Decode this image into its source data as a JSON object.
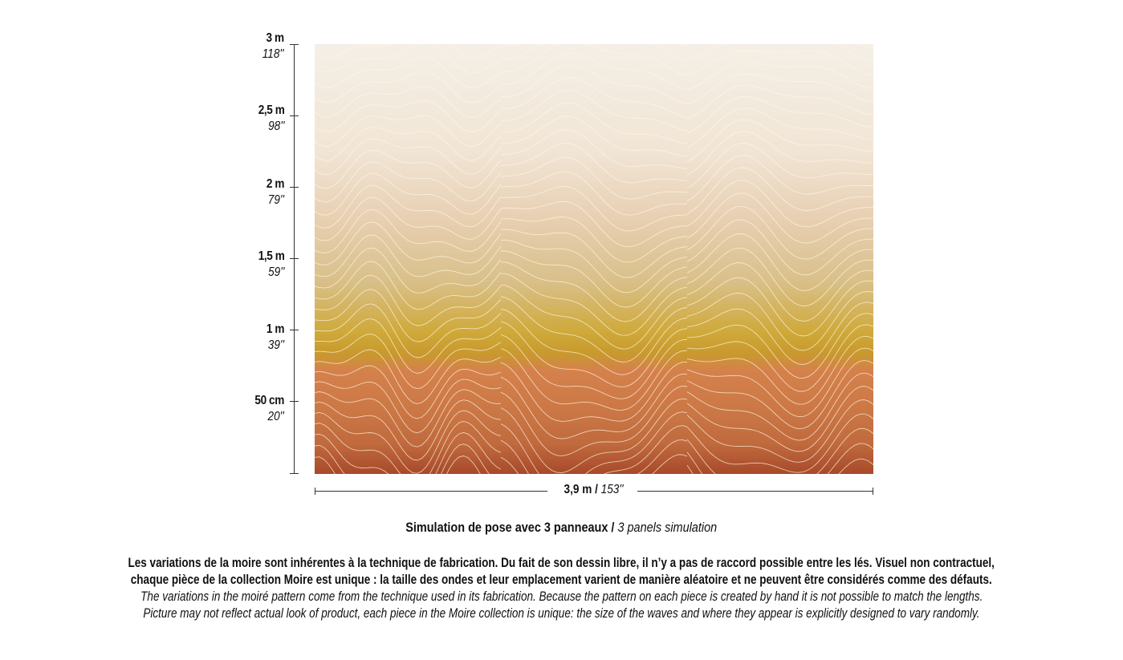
{
  "height_scale": [
    {
      "metric": "3 m",
      "imperial": "118''"
    },
    {
      "metric": "2,5 m",
      "imperial": "98''"
    },
    {
      "metric": "2 m",
      "imperial": "79''"
    },
    {
      "metric": "1,5 m",
      "imperial": "59''"
    },
    {
      "metric": "1 m",
      "imperial": "39''"
    },
    {
      "metric": "50 cm",
      "imperial": "20''"
    }
  ],
  "width": {
    "metric": "3,9 m /",
    "imperial": "153''"
  },
  "caption": {
    "fr": "Simulation de pose avec 3 panneaux /",
    "en": "3 panels simulation"
  },
  "notes": {
    "fr_line1": "Les variations de la moire sont inhérentes à la technique de fabrication. Du fait de son dessin libre, il n’y a pas de raccord possible entre les lés. Visuel non contractuel,",
    "fr_line2": "chaque pièce de la collection Moire est unique : la taille des ondes et leur emplacement varient de manière aléatoire et ne peuvent être considérés comme des défauts.",
    "en_line1": "The variations in the moiré pattern come from the technique used in its fabrication. Because the pattern on each piece is created by hand it is not possible to match the lengths.",
    "en_line2": "Picture may not reflect actual look of product, each piece in the Moire collection is unique: the size of the waves and where they appear is explicitly designed to vary randomly."
  },
  "panels": 3
}
